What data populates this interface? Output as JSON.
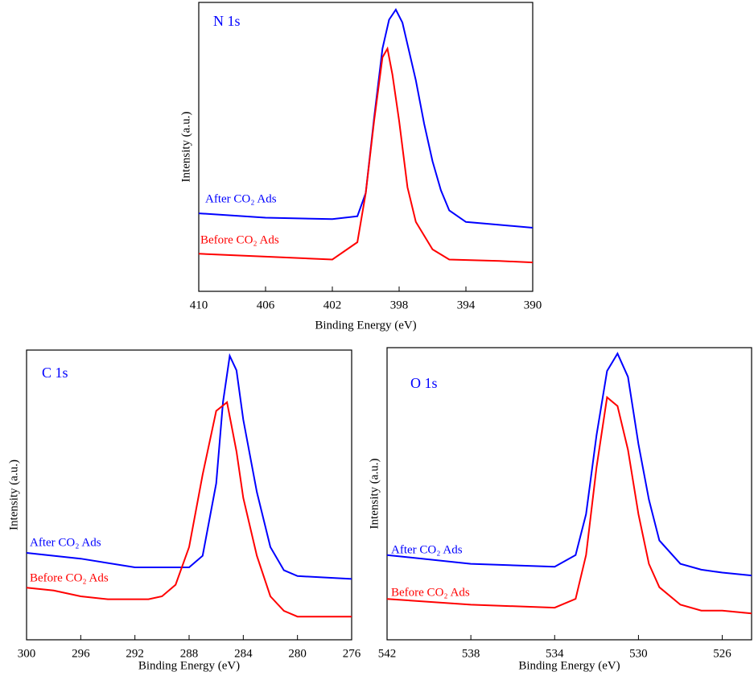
{
  "chart_data": [
    {
      "type": "line",
      "title": "N 1s",
      "xlabel": "Binding Energy (eV)",
      "ylabel": "Intensity (a.u.)",
      "xlim": [
        410,
        390
      ],
      "xticks": [
        410,
        406,
        402,
        398,
        394,
        390
      ],
      "ylim": [
        0,
        100
      ],
      "series": [
        {
          "name": "After CO₂ Ads",
          "color": "#0000ff",
          "x": [
            410,
            406,
            402,
            400.5,
            400,
            399.5,
            399,
            398.6,
            398.2,
            397.8,
            397,
            396.5,
            396,
            395.5,
            395,
            394,
            392,
            390
          ],
          "values": [
            27,
            25.5,
            25,
            26,
            34,
            60,
            84,
            94,
            97.5,
            93,
            73,
            58,
            45,
            35,
            28,
            24,
            23,
            22
          ]
        },
        {
          "name": "Before CO₂ Ads",
          "color": "#ff0000",
          "x": [
            410,
            406,
            402,
            400.5,
            400,
            399.5,
            399,
            398.7,
            398.4,
            398,
            397.5,
            397,
            396,
            395,
            392,
            390
          ],
          "values": [
            13,
            12,
            11,
            17,
            34,
            59,
            81,
            84,
            75,
            59,
            36,
            24,
            14.5,
            11,
            10.5,
            10
          ]
        }
      ]
    },
    {
      "type": "line",
      "title": "C 1s",
      "xlabel": "Binding Energy (eV)",
      "ylabel": "Intensity (a.u.)",
      "xlim": [
        300,
        276
      ],
      "xticks": [
        300,
        296,
        292,
        288,
        284,
        280,
        276
      ],
      "ylim": [
        0,
        100
      ],
      "series": [
        {
          "name": "After CO₂ Ads",
          "color": "#0000ff",
          "x": [
            300,
            296,
            292,
            288,
            287,
            286,
            285.5,
            285,
            284.5,
            284,
            283,
            282,
            281,
            280,
            276
          ],
          "values": [
            30,
            28,
            25,
            25,
            29,
            54,
            82,
            98,
            93,
            76,
            51,
            32,
            24,
            22,
            21
          ]
        },
        {
          "name": "Before CO₂ Ads",
          "color": "#ff0000",
          "x": [
            300,
            298,
            296,
            294,
            291,
            290,
            289,
            288,
            287,
            286,
            285.2,
            284.5,
            284,
            283,
            282,
            281,
            280,
            276
          ],
          "values": [
            18,
            17,
            15,
            14,
            14,
            15,
            19,
            32,
            57,
            79,
            82,
            65,
            49,
            29,
            15,
            10,
            8,
            8
          ]
        }
      ]
    },
    {
      "type": "line",
      "title": "O 1s",
      "xlabel": "Binding Energy (eV)",
      "ylabel": "Intensity (a.u.)",
      "xlim": [
        542,
        524.6
      ],
      "xticks": [
        542,
        538,
        534,
        530,
        526
      ],
      "ylim": [
        0,
        100
      ],
      "series": [
        {
          "name": "After CO₂ Ads",
          "color": "#0000ff",
          "x": [
            542,
            538,
            534,
            533,
            532.5,
            532,
            531.5,
            531,
            530.5,
            530,
            529.5,
            529,
            528,
            527,
            526,
            524.6
          ],
          "values": [
            29,
            26,
            25,
            29,
            43,
            70,
            92,
            98,
            90,
            67,
            48,
            34,
            26,
            24,
            23,
            22
          ]
        },
        {
          "name": "Before CO₂ Ads",
          "color": "#ff0000",
          "x": [
            542,
            538,
            534,
            533,
            532.5,
            532,
            531.5,
            531,
            530.5,
            530,
            529.5,
            529,
            528,
            527,
            526,
            524.6
          ],
          "values": [
            14,
            12,
            11,
            14,
            29,
            59,
            83,
            80,
            65,
            43,
            26,
            18,
            12,
            10,
            10,
            9
          ]
        }
      ]
    }
  ]
}
